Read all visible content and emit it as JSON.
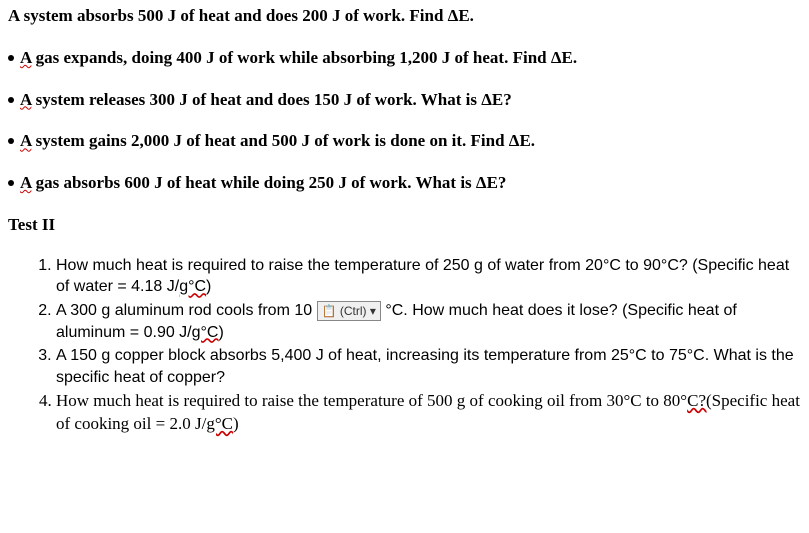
{
  "para1": "A system absorbs 500 J of heat and does 200 J of work. Find ΔE.",
  "bullets": [
    {
      "a": " A",
      "rest": " gas expands, doing 400 J of work while absorbing 1,200 J of heat. Find ΔE."
    },
    {
      "a": " A",
      "rest": " system releases 300 J of heat and does 150 J of work. What is ΔE?"
    },
    {
      "a": " A",
      "rest": " system gains 2,000 J of heat and 500 J of work is done on it. Find ΔE."
    },
    {
      "a": " A",
      "rest": " gas absorbs 600 J of heat while doing 250 J of work. What is ΔE?"
    }
  ],
  "test_title": "Test II",
  "q1a": "How much heat is required to raise the temperature of 250 g of water from 20°C to 90°C? (Specific heat of water = 4.18 J/",
  "q1b": "g°C",
  "q1c": ")",
  "q2a": "A 300 g aluminum rod cools from 10",
  "q2ctrl": "📋 (Ctrl) ▾",
  "q2b": "°C. How much heat does it lose? (Specific heat of aluminum = 0.90 J/",
  "q2c": "g°C",
  "q2d": ")",
  "q3": "A 150 g copper block absorbs 5,400 J of heat, increasing its temperature from 25°C to 75°C. What is the specific heat of copper?",
  "q4a": "How much heat is required to raise the temperature of 500 g of cooking oil from 30°C to 80°",
  "q4b": "C?(",
  "q4c": "Specific heat of cooking oil = 2.0 J/",
  "q4d": "g°C",
  "q4e": ")"
}
